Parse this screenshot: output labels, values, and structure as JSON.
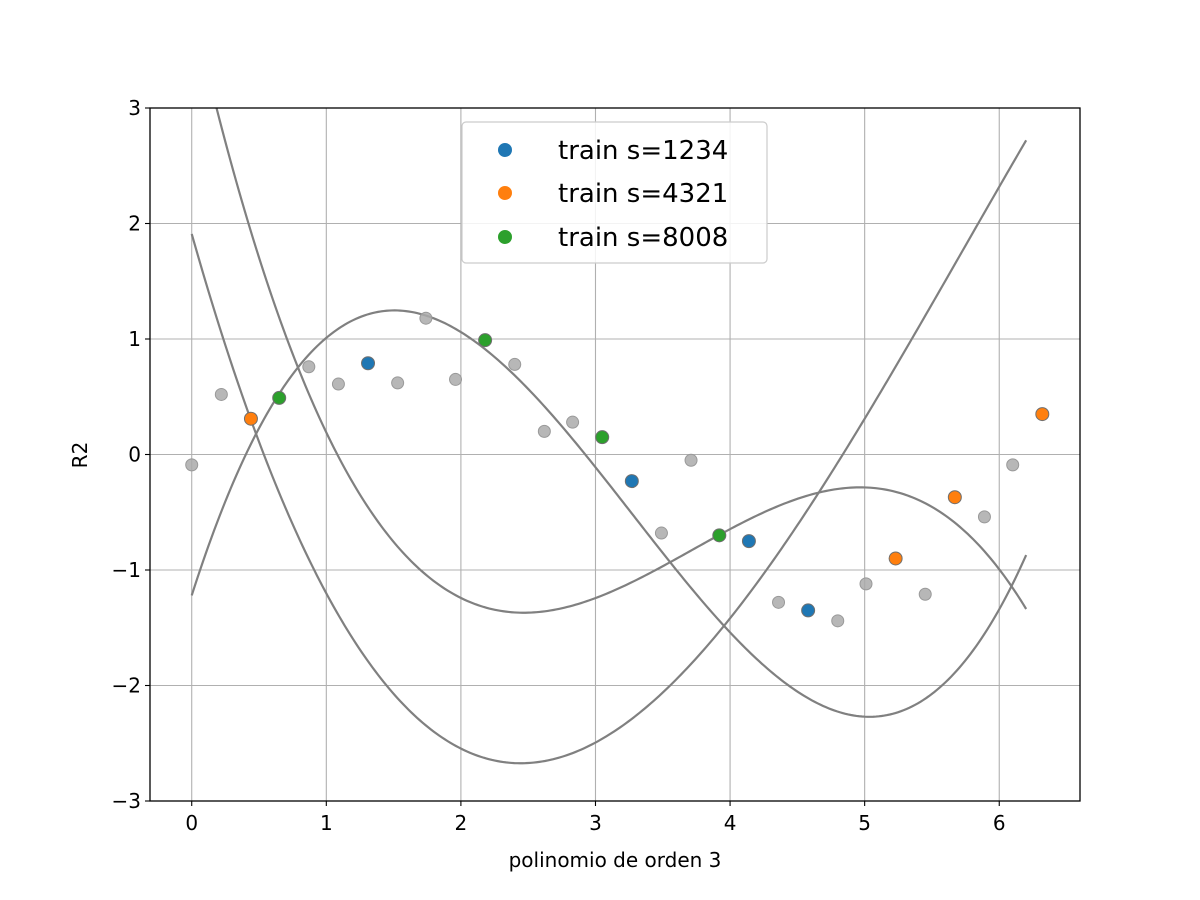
{
  "chart_data": {
    "type": "scatter",
    "title": "",
    "xlabel": "polinomio de orden 3",
    "ylabel": "R2",
    "xlim": [
      -0.31,
      6.6
    ],
    "ylim": [
      -3,
      3
    ],
    "xticks": [
      0,
      1,
      2,
      3,
      4,
      5,
      6
    ],
    "xtick_labels": [
      "0",
      "1",
      "2",
      "3",
      "4",
      "5",
      "6"
    ],
    "yticks": [
      -3,
      -2,
      -1,
      0,
      1,
      2,
      3
    ],
    "ytick_labels": [
      "−3",
      "−2",
      "−1",
      "0",
      "1",
      "2",
      "3"
    ],
    "grid": true,
    "legend_position": "top-center",
    "all_points": {
      "color": "#aaaaaa",
      "x": [
        0.0,
        0.22,
        0.44,
        0.65,
        0.87,
        1.09,
        1.31,
        1.53,
        1.74,
        1.96,
        2.18,
        2.4,
        2.62,
        2.83,
        3.05,
        3.27,
        3.49,
        3.71,
        3.92,
        4.14,
        4.36,
        4.58,
        4.8,
        5.01,
        5.23,
        5.45,
        5.67,
        5.89,
        6.1,
        6.32
      ],
      "y": [
        -0.09,
        0.52,
        0.31,
        0.49,
        0.76,
        0.61,
        0.79,
        0.62,
        1.18,
        0.65,
        0.99,
        0.78,
        0.2,
        0.28,
        0.15,
        -0.23,
        -0.68,
        -0.05,
        -0.7,
        -0.75,
        -1.28,
        -1.35,
        -1.44,
        -1.12,
        -0.9,
        -1.21,
        -0.37,
        -0.54,
        -0.09,
        0.35
      ]
    },
    "series": [
      {
        "name": "train s=1234",
        "color": "#1f77b4",
        "x": [
          1.31,
          3.27,
          4.14,
          4.58
        ],
        "y": [
          0.79,
          -0.23,
          -0.75,
          -1.35
        ]
      },
      {
        "name": "train s=4321",
        "color": "#ff7f0e",
        "x": [
          0.44,
          5.23,
          5.67,
          6.32
        ],
        "y": [
          0.31,
          -0.9,
          -0.37,
          0.35
        ]
      },
      {
        "name": "train s=8008",
        "color": "#2ca02c",
        "x": [
          0.65,
          2.18,
          3.05,
          3.92
        ],
        "y": [
          0.49,
          0.99,
          0.15,
          -0.7
        ]
      }
    ],
    "fit_curves": {
      "color": "#808080",
      "x_range": [
        0,
        6.2
      ],
      "coefficients": [
        [
          1.91,
          -4.12,
          1.07,
          -0.062
        ],
        [
          -1.22,
          3.64,
          -1.57,
          0.16
        ],
        [
          3.89,
          -5.11,
          1.55,
          -0.139
        ]
      ]
    }
  }
}
